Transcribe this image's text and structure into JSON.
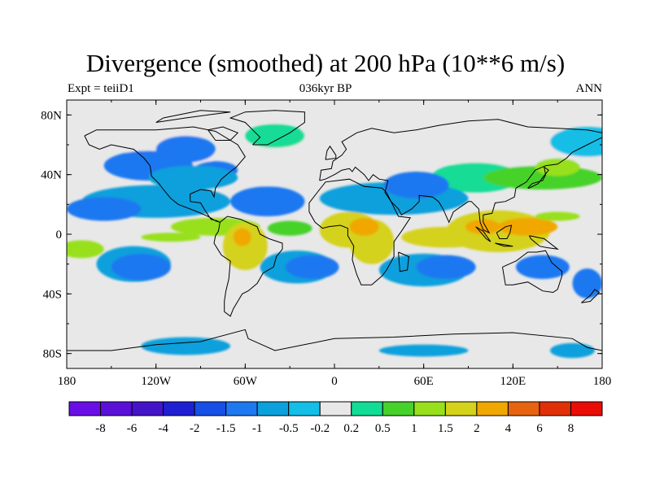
{
  "title": "Divergence (smoothed) at 200 hPa (10**6 m/s)",
  "subtitle_left": "Expt = teiiD1",
  "subtitle_center": "036kyr BP",
  "subtitle_right": "ANN",
  "map": {
    "lon_range": [
      -180,
      180
    ],
    "lat_range": [
      -90,
      90
    ],
    "lat_ticks": [
      {
        "lat": 80,
        "label": "80N"
      },
      {
        "lat": 40,
        "label": "40N"
      },
      {
        "lat": 0,
        "label": "0"
      },
      {
        "lat": -40,
        "label": "40S"
      },
      {
        "lat": -80,
        "label": "80S"
      }
    ],
    "lon_ticks": [
      {
        "lon": -180,
        "label": "180"
      },
      {
        "lon": -120,
        "label": "120W"
      },
      {
        "lon": -60,
        "label": "60W"
      },
      {
        "lon": 0,
        "label": "0"
      },
      {
        "lon": 60,
        "label": "60E"
      },
      {
        "lon": 120,
        "label": "120E"
      },
      {
        "lon": 180,
        "label": "180"
      }
    ],
    "background_color": "#e8e8e8",
    "regions": [
      {
        "lon": 0,
        "lat": 82,
        "rx": 200,
        "ry": 8,
        "level": 8
      },
      {
        "lon": -110,
        "lat": 55,
        "rx": 30,
        "ry": 14,
        "level": 8
      },
      {
        "lon": -125,
        "lat": 46,
        "rx": 30,
        "ry": 10,
        "level": 5
      },
      {
        "lon": -25,
        "lat": 58,
        "rx": 28,
        "ry": 12,
        "level": 8
      },
      {
        "lon": -40,
        "lat": 66,
        "rx": 20,
        "ry": 8,
        "level": 9
      },
      {
        "lon": 30,
        "lat": 63,
        "rx": 45,
        "ry": 9,
        "level": 8
      },
      {
        "lon": 120,
        "lat": 58,
        "rx": 65,
        "ry": 14,
        "level": 8
      },
      {
        "lon": 170,
        "lat": 62,
        "rx": 25,
        "ry": 10,
        "level": 7
      },
      {
        "lon": -100,
        "lat": 57,
        "rx": 20,
        "ry": 9,
        "level": 5
      },
      {
        "lon": -80,
        "lat": 43,
        "rx": 15,
        "ry": 6,
        "level": 5
      },
      {
        "lon": -95,
        "lat": 38,
        "rx": 30,
        "ry": 8,
        "level": 6
      },
      {
        "lon": 95,
        "lat": 38,
        "rx": 30,
        "ry": 10,
        "level": 9
      },
      {
        "lon": 70,
        "lat": 25,
        "rx": 15,
        "ry": 8,
        "level": 9
      },
      {
        "lon": 140,
        "lat": 38,
        "rx": 40,
        "ry": 8,
        "level": 10
      },
      {
        "lon": 150,
        "lat": 45,
        "rx": 15,
        "ry": 6,
        "level": 11
      },
      {
        "lon": -120,
        "lat": 22,
        "rx": 50,
        "ry": 11,
        "level": 6
      },
      {
        "lon": -155,
        "lat": 17,
        "rx": 25,
        "ry": 8,
        "level": 5
      },
      {
        "lon": -45,
        "lat": 22,
        "rx": 25,
        "ry": 10,
        "level": 5
      },
      {
        "lon": 40,
        "lat": 24,
        "rx": 50,
        "ry": 11,
        "level": 6
      },
      {
        "lon": 55,
        "lat": 33,
        "rx": 22,
        "ry": 9,
        "level": 5
      },
      {
        "lon": -30,
        "lat": 4,
        "rx": 15,
        "ry": 5,
        "level": 10
      },
      {
        "lon": -80,
        "lat": 5,
        "rx": 30,
        "ry": 6,
        "level": 11
      },
      {
        "lon": -60,
        "lat": -8,
        "rx": 15,
        "ry": 16,
        "level": 12
      },
      {
        "lon": -62,
        "lat": -2,
        "rx": 6,
        "ry": 6,
        "level": 13
      },
      {
        "lon": -110,
        "lat": -2,
        "rx": 20,
        "ry": 3,
        "level": 11
      },
      {
        "lon": 10,
        "lat": 3,
        "rx": 20,
        "ry": 12,
        "level": 12
      },
      {
        "lon": 25,
        "lat": -5,
        "rx": 15,
        "ry": 15,
        "level": 12
      },
      {
        "lon": 20,
        "lat": 5,
        "rx": 10,
        "ry": 6,
        "level": 13
      },
      {
        "lon": 75,
        "lat": -2,
        "rx": 30,
        "ry": 7,
        "level": 12
      },
      {
        "lon": 110,
        "lat": 2,
        "rx": 35,
        "ry": 14,
        "level": 12
      },
      {
        "lon": 130,
        "lat": 5,
        "rx": 20,
        "ry": 6,
        "level": 13
      },
      {
        "lon": 100,
        "lat": 5,
        "rx": 12,
        "ry": 5,
        "level": 13
      },
      {
        "lon": 150,
        "lat": 12,
        "rx": 15,
        "ry": 3,
        "level": 11
      },
      {
        "lon": 160,
        "lat": -5,
        "rx": 8,
        "ry": 3,
        "level": 8
      },
      {
        "lon": -170,
        "lat": -10,
        "rx": 15,
        "ry": 6,
        "level": 11
      },
      {
        "lon": -135,
        "lat": -20,
        "rx": 25,
        "ry": 12,
        "level": 6
      },
      {
        "lon": -130,
        "lat": -22,
        "rx": 20,
        "ry": 9,
        "level": 5
      },
      {
        "lon": -25,
        "lat": -22,
        "rx": 25,
        "ry": 11,
        "level": 6
      },
      {
        "lon": -15,
        "lat": -22,
        "rx": 18,
        "ry": 8,
        "level": 5
      },
      {
        "lon": 60,
        "lat": -24,
        "rx": 30,
        "ry": 11,
        "level": 6
      },
      {
        "lon": 75,
        "lat": -22,
        "rx": 20,
        "ry": 8,
        "level": 5
      },
      {
        "lon": 140,
        "lat": -22,
        "rx": 18,
        "ry": 8,
        "level": 5
      },
      {
        "lon": 170,
        "lat": -33,
        "rx": 10,
        "ry": 10,
        "level": 5
      },
      {
        "lon": -140,
        "lat": -45,
        "rx": 40,
        "ry": 12,
        "level": 8
      },
      {
        "lon": -60,
        "lat": -50,
        "rx": 20,
        "ry": 12,
        "level": 8
      },
      {
        "lon": -30,
        "lat": -52,
        "rx": 25,
        "ry": 8,
        "level": 8
      },
      {
        "lon": 40,
        "lat": -55,
        "rx": 30,
        "ry": 7,
        "level": 8
      },
      {
        "lon": 130,
        "lat": -50,
        "rx": 40,
        "ry": 7,
        "level": 8
      },
      {
        "lon": 100,
        "lat": -62,
        "rx": 40,
        "ry": 6,
        "level": 8
      },
      {
        "lon": -100,
        "lat": -75,
        "rx": 30,
        "ry": 6,
        "level": 6
      },
      {
        "lon": 60,
        "lat": -78,
        "rx": 30,
        "ry": 4,
        "level": 6
      },
      {
        "lon": 160,
        "lat": -78,
        "rx": 15,
        "ry": 5,
        "level": 6
      }
    ]
  },
  "colorbar": {
    "colors": [
      "#6a0ee6",
      "#5a10d8",
      "#4414c8",
      "#1e20d2",
      "#1650e6",
      "#1e78f0",
      "#0ca0dc",
      "#14bee6",
      "#e8e8e8",
      "#12dc96",
      "#46d22a",
      "#98e01e",
      "#d4d21a",
      "#f0a800",
      "#e66410",
      "#e03008",
      "#ea0c06"
    ],
    "labels": [
      "-8",
      "-6",
      "-4",
      "-2",
      "-1.5",
      "-1",
      "-0.5",
      "-0.2",
      "0.2",
      "0.5",
      "1",
      "1.5",
      "2",
      "4",
      "6",
      "8"
    ]
  }
}
